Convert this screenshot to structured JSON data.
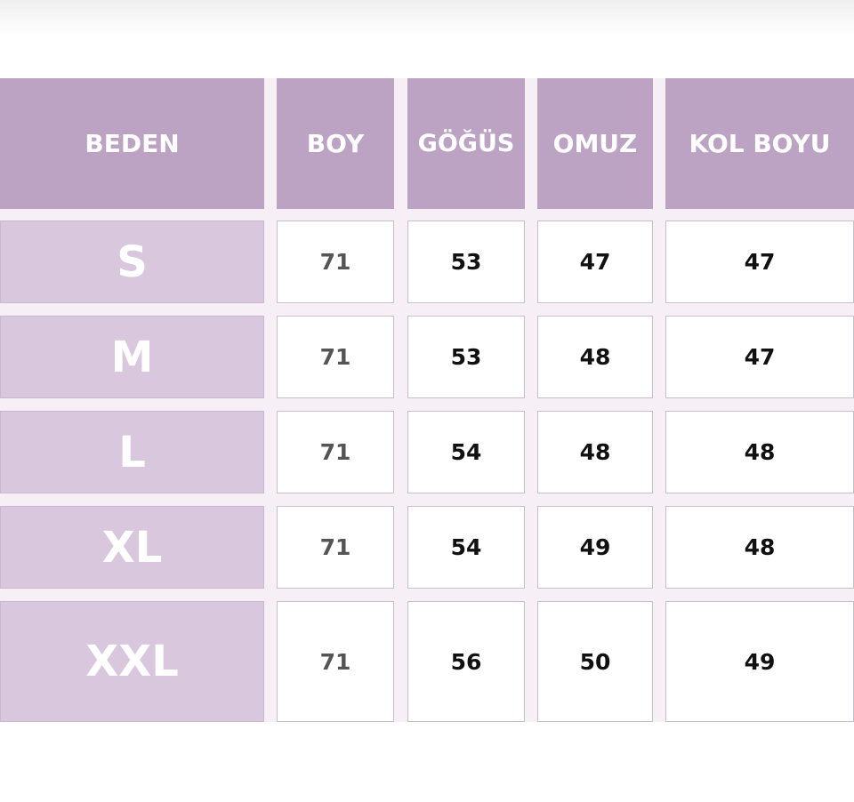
{
  "table": {
    "headers": [
      "BEDEN",
      "BOY",
      "GÖĞÜS",
      "OMUZ",
      "KOL BOYU"
    ],
    "rows": [
      {
        "size": "S",
        "values": [
          "71",
          "53",
          "47",
          "47"
        ]
      },
      {
        "size": "M",
        "values": [
          "71",
          "53",
          "48",
          "47"
        ]
      },
      {
        "size": "L",
        "values": [
          "71",
          "54",
          "48",
          "48"
        ]
      },
      {
        "size": "XL",
        "values": [
          "71",
          "54",
          "49",
          "48"
        ]
      },
      {
        "size": "XXL",
        "values": [
          "71",
          "56",
          "50",
          "49"
        ]
      }
    ]
  },
  "colors": {
    "header": "#bca3c4",
    "size_cell": "#d9c7dd",
    "gap": "#f6eff6"
  }
}
